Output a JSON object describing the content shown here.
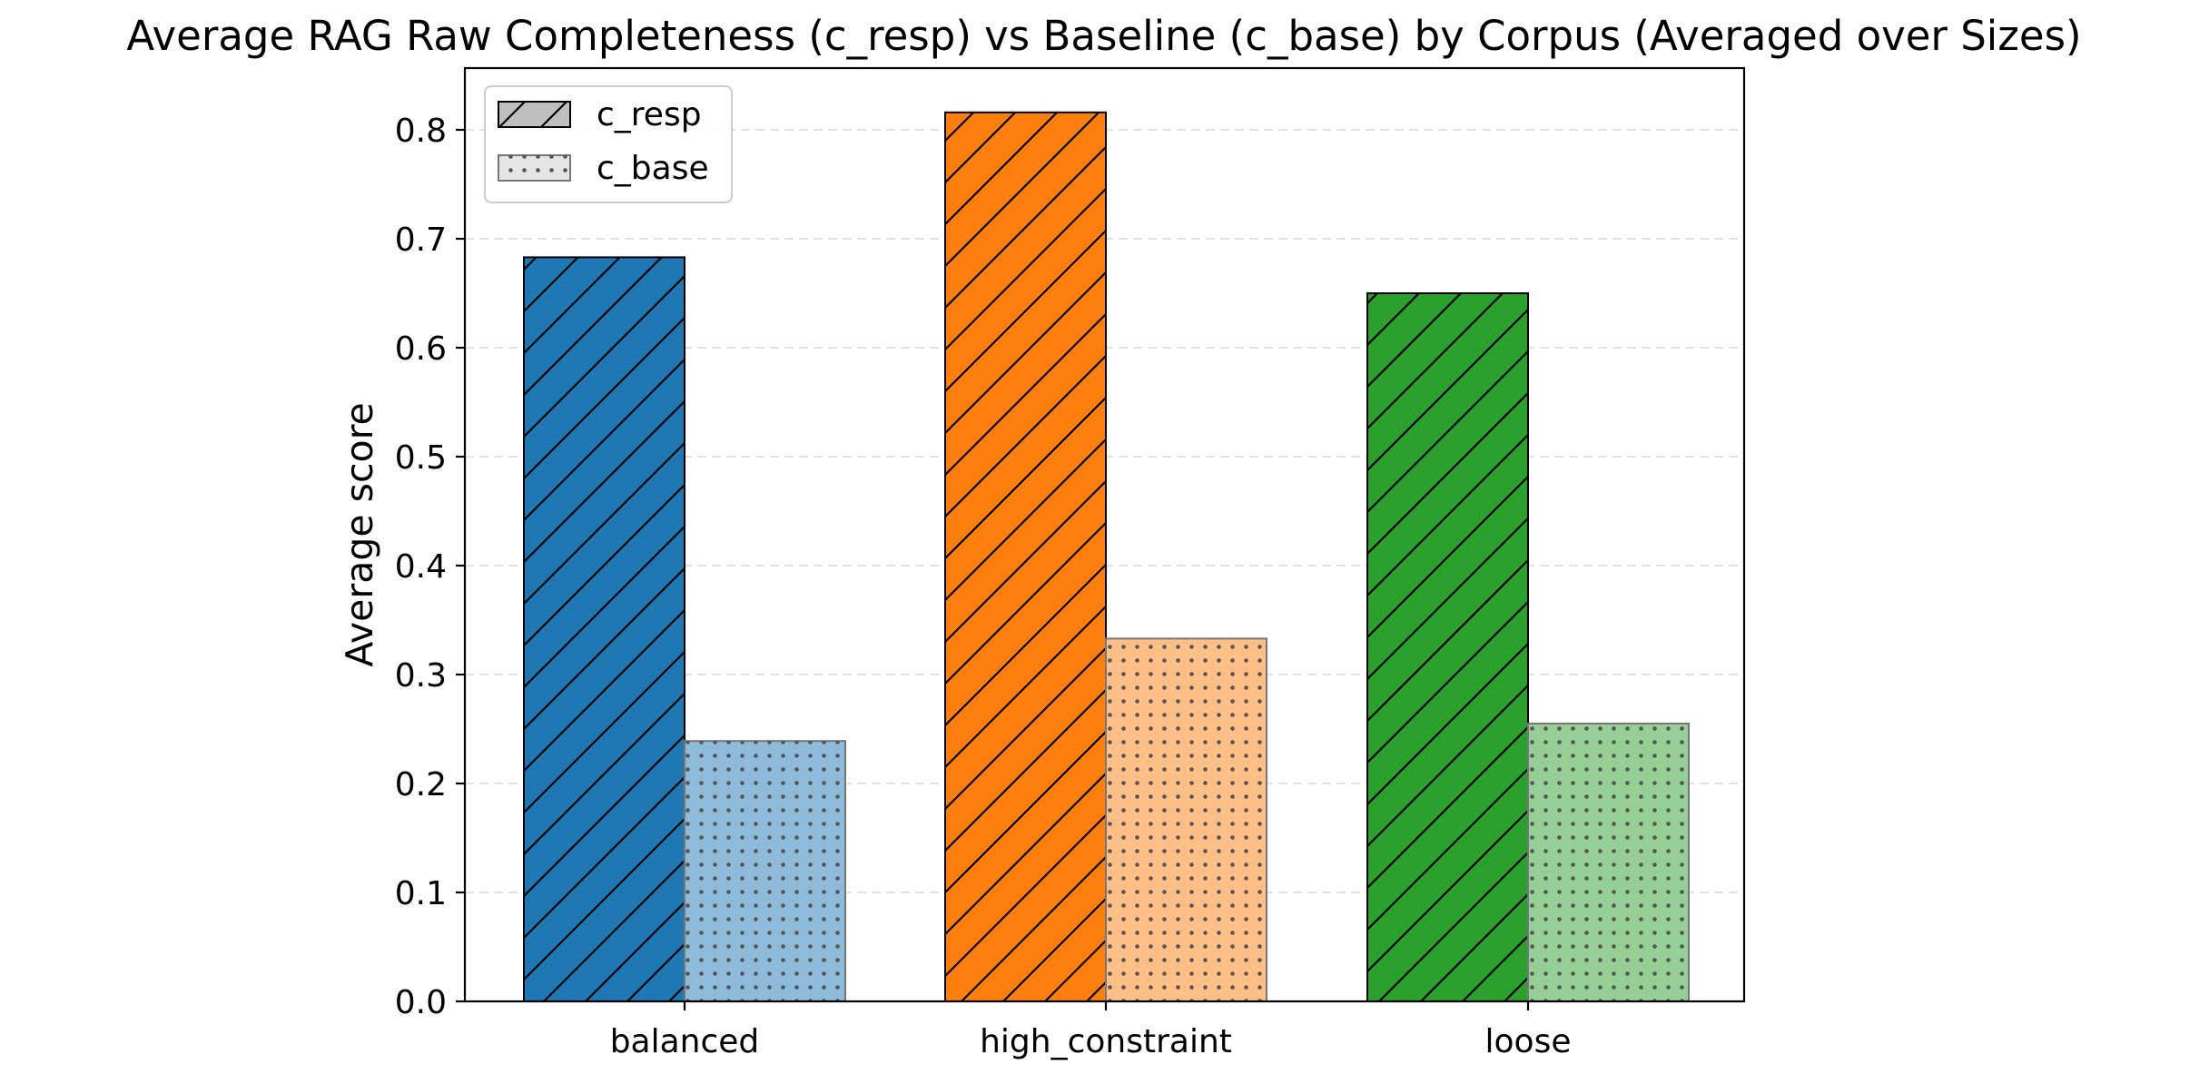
{
  "chart_data": {
    "type": "bar",
    "title": "Average RAG Raw Completeness (c_resp) vs Baseline (c_base) by Corpus (Averaged over Sizes)",
    "xlabel": "",
    "ylabel": "Average score",
    "categories": [
      "balanced",
      "high_constraint",
      "loose"
    ],
    "series": [
      {
        "name": "c_resp",
        "values": [
          0.683,
          0.816,
          0.65
        ],
        "pattern": "diagonal-hatch"
      },
      {
        "name": "c_base",
        "values": [
          0.239,
          0.333,
          0.255
        ],
        "pattern": "dots"
      }
    ],
    "bar_colors": {
      "c_resp": [
        "#1f77b4",
        "#ff7f0e",
        "#2ca02c"
      ],
      "c_base": [
        "#8fbbda",
        "#ffbf86",
        "#95cf95"
      ]
    },
    "ylim": [
      0,
      0.855
    ],
    "yticks": [
      "0.0",
      "0.1",
      "0.2",
      "0.3",
      "0.4",
      "0.5",
      "0.6",
      "0.7",
      "0.8"
    ],
    "grid": "y-dashed",
    "legend_position": "top-left"
  }
}
